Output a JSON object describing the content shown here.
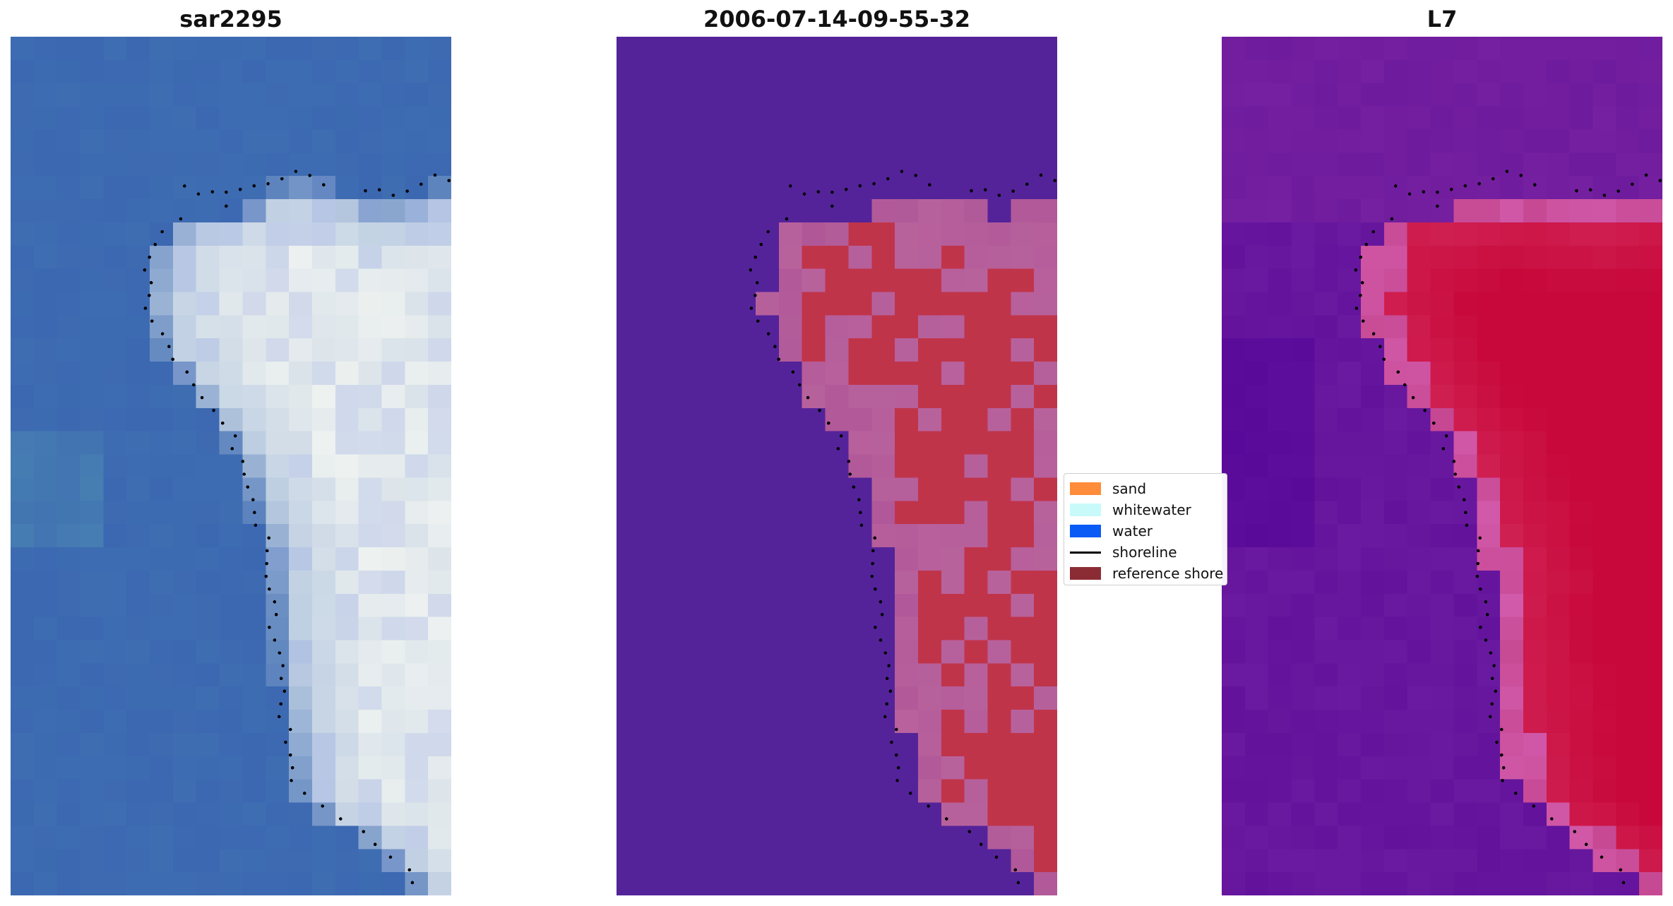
{
  "panels": [
    {
      "title": "sar2295"
    },
    {
      "title": "2006-07-14-09-55-32"
    },
    {
      "title": "L7"
    }
  ],
  "legend": {
    "items": [
      {
        "label": "sand",
        "color": "#ff8c3a"
      },
      {
        "label": "whitewater",
        "color": "#c8fafa"
      },
      {
        "label": "water",
        "color": "#0a5af5"
      },
      {
        "label": "shoreline",
        "color": "#000000"
      },
      {
        "label": "reference shore",
        "color": "#8b2c35"
      }
    ]
  },
  "colors": {
    "rgb_water": "#3e6db2",
    "rgb_foam": "#f4f6f2",
    "classified_water": "#54239a",
    "classified_sand": "#c0344a",
    "classified_mix": "#b8629c",
    "index_low": "#6a1aa0",
    "index_high": "#c8083a"
  }
}
